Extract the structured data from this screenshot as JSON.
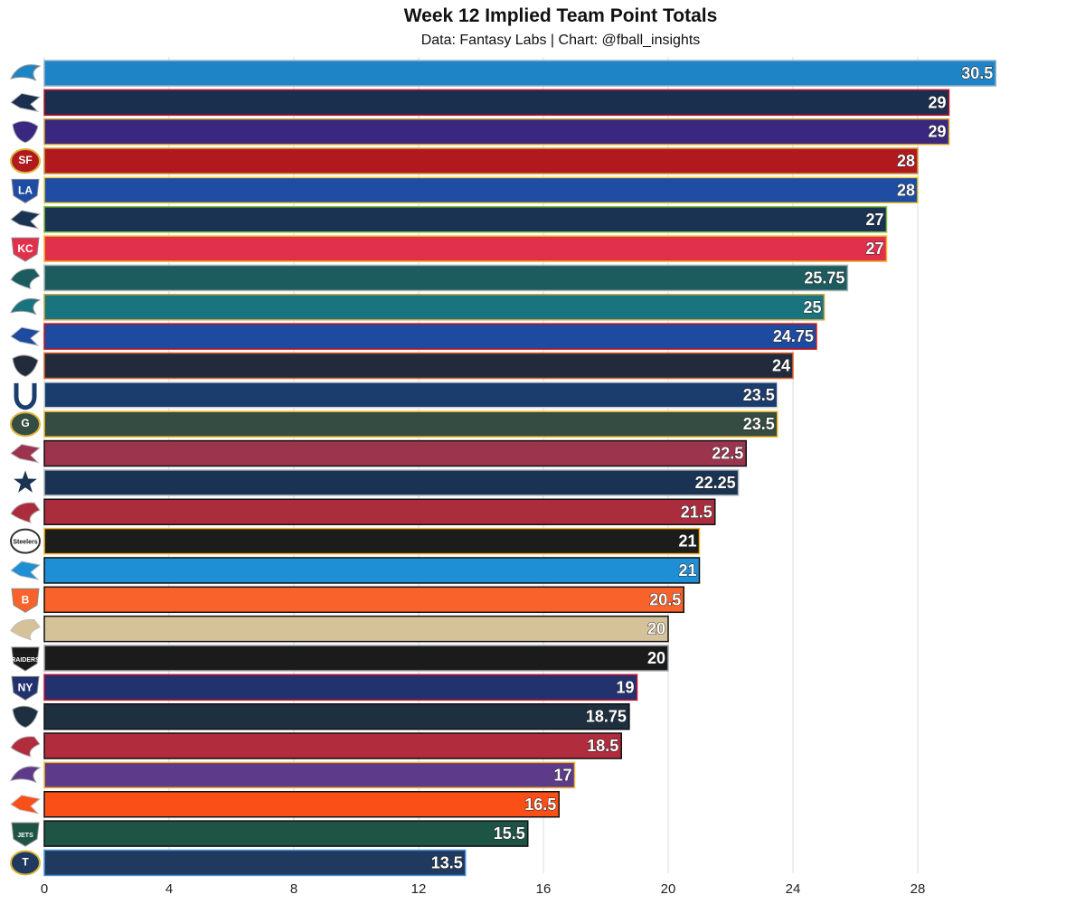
{
  "chart_data": {
    "type": "bar",
    "orientation": "horizontal",
    "title": "Week 12 Implied Team Point Totals",
    "subtitle": "Data: Fantasy Labs | Chart: @fball_insights",
    "xlabel": "",
    "ylabel": "",
    "xlim": [
      0,
      31
    ],
    "x_ticks": [
      "0",
      "4",
      "8",
      "12",
      "16",
      "20",
      "24",
      "28"
    ],
    "grid": "vertical",
    "categories": [
      "DET",
      "NE",
      "BAL",
      "SF",
      "LAR",
      "SEA",
      "KC",
      "PHI",
      "JAX",
      "BUF",
      "CHI",
      "IND",
      "GB",
      "ARI",
      "DAL",
      "TB",
      "PIT",
      "CAR",
      "CIN",
      "NO",
      "LV",
      "NYG",
      "HOU",
      "ATL",
      "MIN",
      "CLE",
      "NYJ",
      "TEN"
    ],
    "values": [
      30.5,
      29,
      29,
      28,
      28,
      27,
      27,
      25.75,
      25,
      24.75,
      24,
      23.5,
      23.5,
      22.5,
      22.25,
      21.5,
      21,
      21,
      20.5,
      20,
      20,
      19,
      18.75,
      18.5,
      17,
      16.5,
      15.5,
      13.5
    ],
    "value_labels": [
      "30.5",
      "29",
      "29",
      "28",
      "28",
      "27",
      "27",
      "25.75",
      "25",
      "24.75",
      "24",
      "23.5",
      "23.5",
      "22.5",
      "22.25",
      "21.5",
      "21",
      "21",
      "20.5",
      "20",
      "20",
      "19",
      "18.75",
      "18.5",
      "17",
      "16.5",
      "15.5",
      "13.5"
    ],
    "bar_colors": [
      "#1f84c6",
      "#1a2f4e",
      "#3a2880",
      "#b1191e",
      "#1f4da3",
      "#1b3353",
      "#e1304b",
      "#1c5c5e",
      "#1a747f",
      "#1d4ba0",
      "#222b3c",
      "#1b3d6e",
      "#354c43",
      "#9d344e",
      "#1a3353",
      "#ab2d3d",
      "#1c1c1c",
      "#1e8fd4",
      "#f9622a",
      "#d5c298",
      "#1b1b1b",
      "#22326f",
      "#1e2f3f",
      "#b12c3c",
      "#5e3a8a",
      "#fa4f17",
      "#1d5443",
      "#1f3a5e"
    ],
    "bar_outlines": [
      "#8fb1c4",
      "#c8102e",
      "#d4a52a",
      "#c9a03c",
      "#f0cc32",
      "#7dbd3f",
      "#f5b721",
      "#a8b3b5",
      "#c9a53c",
      "#d50a0a",
      "#e0622a",
      "#dcdcdc",
      "#f2b926",
      "#111111",
      "#b0b7bc",
      "#111111",
      "#f0b628",
      "#111111",
      "#111111",
      "#111111",
      "#a5acaf",
      "#c8102e",
      "#111111",
      "#111111",
      "#f2b72a",
      "#111111",
      "#111111",
      "#4b92db"
    ]
  },
  "logos": [
    {
      "team": "DET",
      "icon": "lion-icon",
      "color": "#1f84c6",
      "text": ""
    },
    {
      "team": "NE",
      "icon": "patriot-icon",
      "color": "#1a2f4e",
      "text": ""
    },
    {
      "team": "BAL",
      "icon": "raven-icon",
      "color": "#3a2880",
      "text": ""
    },
    {
      "team": "SF",
      "icon": "sf-oval-icon",
      "color": "#b1191e",
      "text": "SF"
    },
    {
      "team": "LAR",
      "icon": "la-ram-icon",
      "color": "#1f4da3",
      "text": "LA"
    },
    {
      "team": "SEA",
      "icon": "seahawk-icon",
      "color": "#1b3353",
      "text": ""
    },
    {
      "team": "KC",
      "icon": "arrowhead-icon",
      "color": "#e1304b",
      "text": "KC"
    },
    {
      "team": "PHI",
      "icon": "eagle-icon",
      "color": "#1c5c5e",
      "text": ""
    },
    {
      "team": "JAX",
      "icon": "jaguar-icon",
      "color": "#1a747f",
      "text": ""
    },
    {
      "team": "BUF",
      "icon": "buffalo-icon",
      "color": "#1d4ba0",
      "text": ""
    },
    {
      "team": "CHI",
      "icon": "bear-icon",
      "color": "#222b3c",
      "text": ""
    },
    {
      "team": "IND",
      "icon": "horseshoe-icon",
      "color": "#1b3d6e",
      "text": ""
    },
    {
      "team": "GB",
      "icon": "g-oval-icon",
      "color": "#354c43",
      "text": "G"
    },
    {
      "team": "ARI",
      "icon": "cardinal-icon",
      "color": "#9d344e",
      "text": ""
    },
    {
      "team": "DAL",
      "icon": "star-icon",
      "color": "#1a3353",
      "text": ""
    },
    {
      "team": "TB",
      "icon": "flag-icon",
      "color": "#ab2d3d",
      "text": ""
    },
    {
      "team": "PIT",
      "icon": "steelers-icon",
      "color": "#1c1c1c",
      "text": "Steelers"
    },
    {
      "team": "CAR",
      "icon": "panther-icon",
      "color": "#1e8fd4",
      "text": ""
    },
    {
      "team": "CIN",
      "icon": "bengal-icon",
      "color": "#f9622a",
      "text": "B"
    },
    {
      "team": "NO",
      "icon": "fleur-de-lis-icon",
      "color": "#d5c298",
      "text": ""
    },
    {
      "team": "LV",
      "icon": "raiders-shield-icon",
      "color": "#1b1b1b",
      "text": "RAIDERS"
    },
    {
      "team": "NYG",
      "icon": "ny-icon",
      "color": "#22326f",
      "text": "NY"
    },
    {
      "team": "HOU",
      "icon": "texans-icon",
      "color": "#1e2f3f",
      "text": ""
    },
    {
      "team": "ATL",
      "icon": "falcon-icon",
      "color": "#b12c3c",
      "text": ""
    },
    {
      "team": "MIN",
      "icon": "viking-icon",
      "color": "#5e3a8a",
      "text": ""
    },
    {
      "team": "CLE",
      "icon": "helmet-icon",
      "color": "#fa4f17",
      "text": ""
    },
    {
      "team": "NYJ",
      "icon": "jets-icon",
      "color": "#1d5443",
      "text": "JETS"
    },
    {
      "team": "TEN",
      "icon": "titans-icon",
      "color": "#1f3a5e",
      "text": "T"
    }
  ]
}
